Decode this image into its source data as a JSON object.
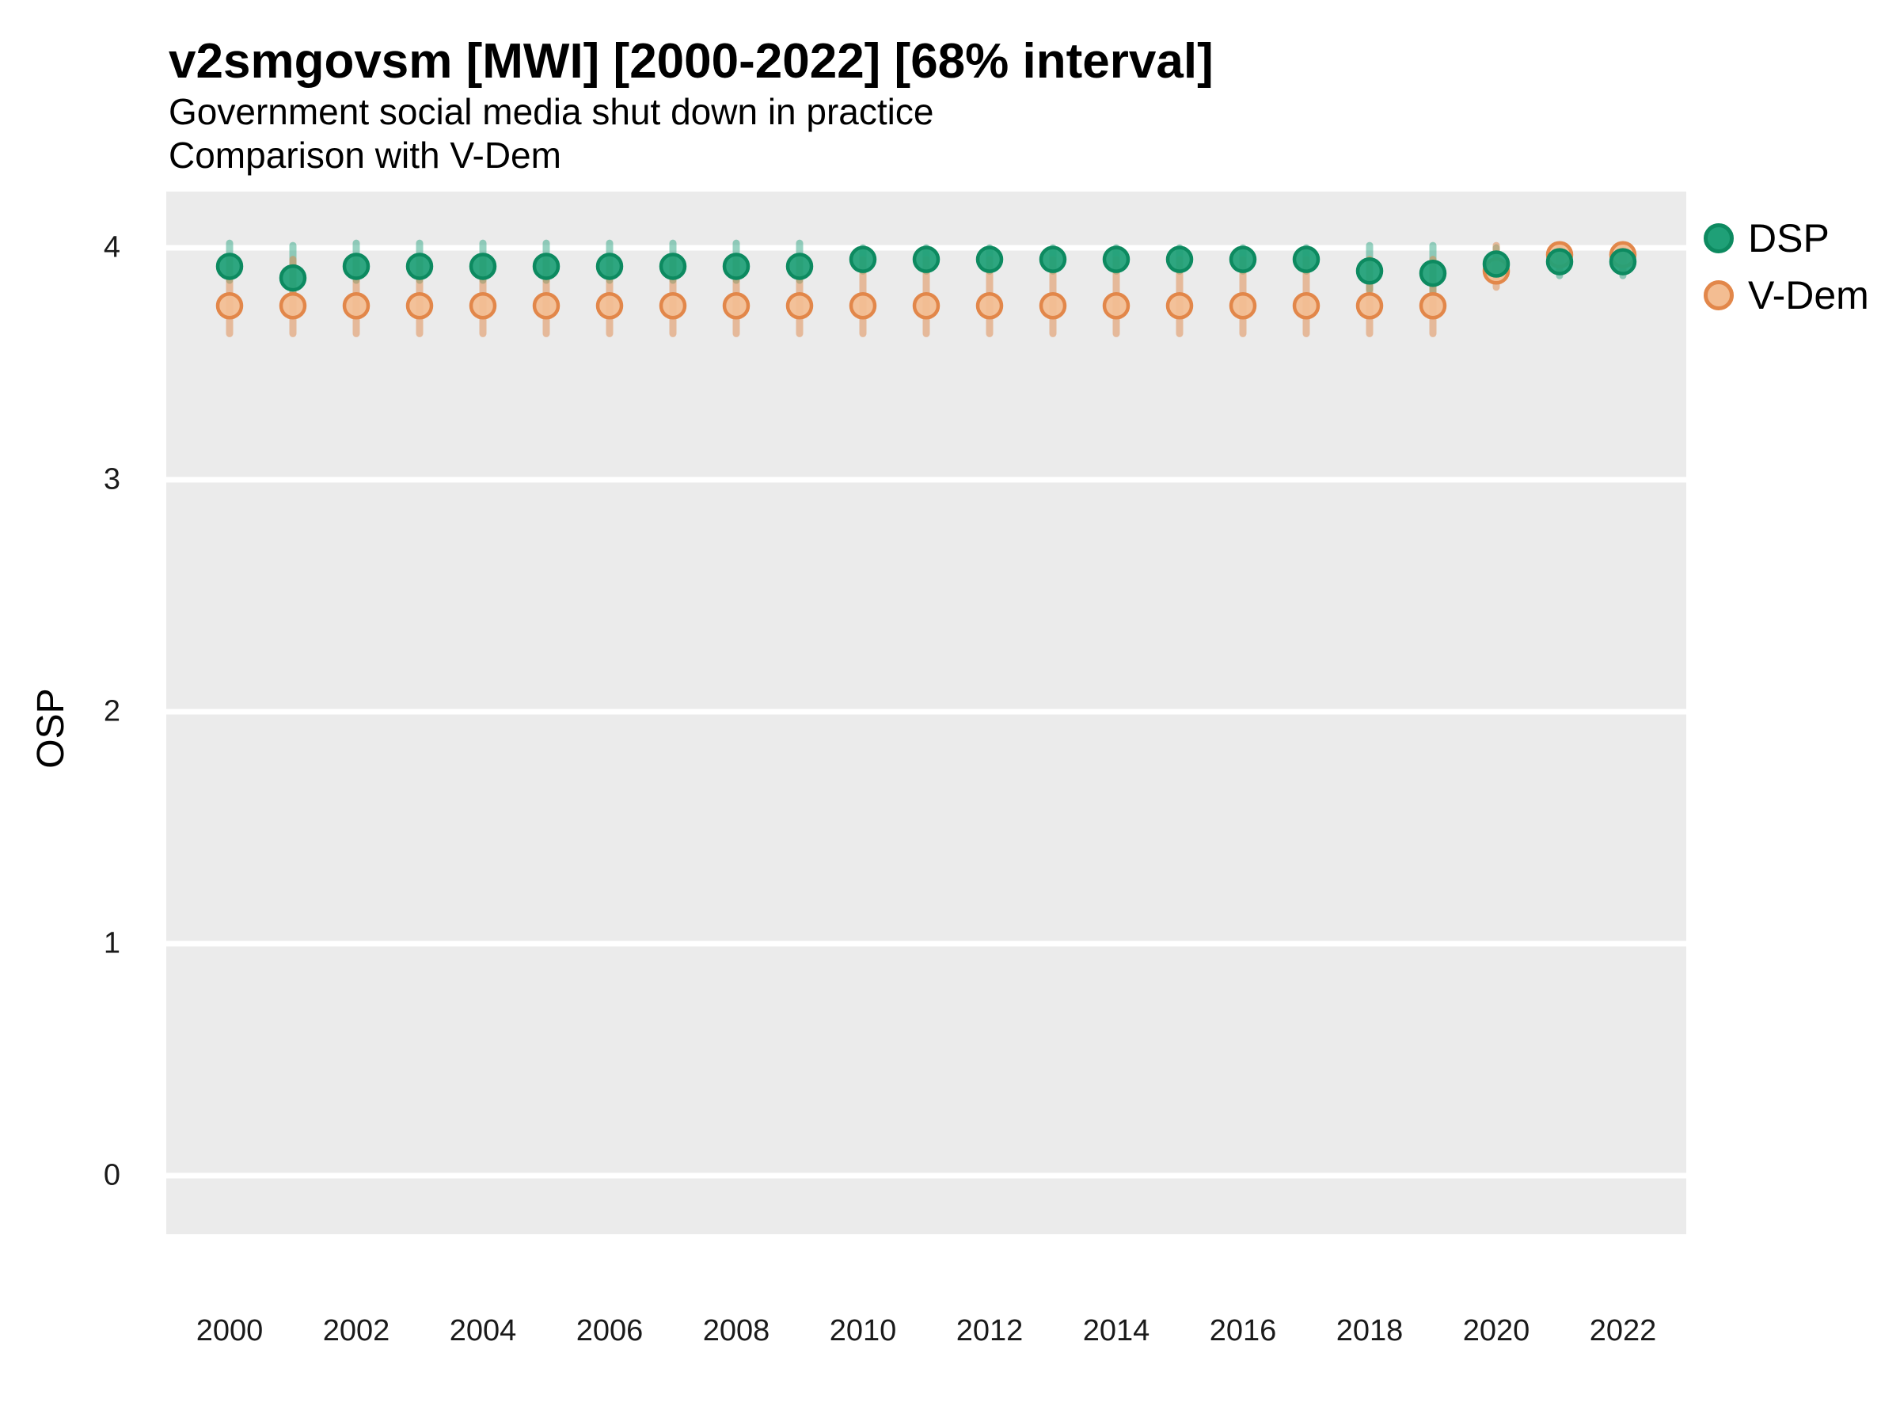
{
  "header": {
    "title": "v2smgovsm [MWI] [2000-2022] [68% interval]",
    "subtitle": "Government social media shut down in practice",
    "subtitle2": "Comparison with V-Dem"
  },
  "chart_data": {
    "type": "pointrange",
    "title": "v2smgovsm [MWI] [2000-2022] [68% interval]",
    "subtitle": "Government social media shut down in practice",
    "comparison_note": "Comparison with V-Dem",
    "ylabel": "OSP",
    "xlabel": "",
    "x": [
      2000,
      2001,
      2002,
      2003,
      2004,
      2005,
      2006,
      2007,
      2008,
      2009,
      2010,
      2011,
      2012,
      2013,
      2014,
      2015,
      2016,
      2017,
      2018,
      2019,
      2020,
      2021,
      2022
    ],
    "xtick_labels": [
      "2000",
      "2002",
      "2004",
      "2006",
      "2008",
      "2010",
      "2012",
      "2014",
      "2016",
      "2018",
      "2020",
      "2022"
    ],
    "ytick_labels": [
      "0",
      "1",
      "2",
      "3",
      "4"
    ],
    "yticks": [
      0,
      1,
      2,
      3,
      4
    ],
    "ylim": [
      -0.3,
      4.25
    ],
    "grid": "major-horizontal-white",
    "legend_position": "right",
    "interval": "68%",
    "series": [
      {
        "name": "DSP",
        "point_fill": "#1fa077",
        "point_stroke": "#0d8a60",
        "bar_color": "#1b9e77",
        "values": [
          3.92,
          3.87,
          3.92,
          3.92,
          3.92,
          3.92,
          3.92,
          3.92,
          3.92,
          3.92,
          3.95,
          3.95,
          3.95,
          3.95,
          3.95,
          3.95,
          3.95,
          3.95,
          3.9,
          3.89,
          3.93,
          3.94,
          3.94
        ],
        "lo": [
          3.86,
          3.8,
          3.86,
          3.86,
          3.86,
          3.86,
          3.86,
          3.86,
          3.86,
          3.86,
          3.9,
          3.9,
          3.9,
          3.9,
          3.9,
          3.9,
          3.9,
          3.9,
          3.82,
          3.81,
          3.88,
          3.88,
          3.88
        ],
        "hi": [
          4.02,
          4.01,
          4.02,
          4.02,
          4.02,
          4.02,
          4.02,
          4.02,
          4.02,
          4.02,
          4.0,
          4.0,
          4.0,
          4.0,
          4.0,
          4.0,
          4.0,
          4.0,
          4.01,
          4.01,
          4.0,
          3.99,
          3.99
        ]
      },
      {
        "name": "V-Dem",
        "point_fill": "#f3bd92",
        "point_stroke": "#e2874a",
        "bar_color": "#e0874a",
        "values": [
          3.75,
          3.75,
          3.75,
          3.75,
          3.75,
          3.75,
          3.75,
          3.75,
          3.75,
          3.75,
          3.75,
          3.75,
          3.75,
          3.75,
          3.75,
          3.75,
          3.75,
          3.75,
          3.75,
          3.75,
          3.9,
          3.97,
          3.97
        ],
        "lo": [
          3.63,
          3.63,
          3.63,
          3.63,
          3.63,
          3.63,
          3.63,
          3.63,
          3.63,
          3.63,
          3.63,
          3.63,
          3.63,
          3.63,
          3.63,
          3.63,
          3.63,
          3.63,
          3.63,
          3.63,
          3.83,
          3.9,
          3.9
        ],
        "hi": [
          3.95,
          3.95,
          3.95,
          3.95,
          3.95,
          3.95,
          3.95,
          3.95,
          3.95,
          3.95,
          3.95,
          3.95,
          3.95,
          3.95,
          3.95,
          3.95,
          3.95,
          3.95,
          3.95,
          3.95,
          4.01,
          4.01,
          4.01
        ]
      }
    ],
    "panel_color": "#ebebeb",
    "gridline_color": "#ffffff"
  }
}
